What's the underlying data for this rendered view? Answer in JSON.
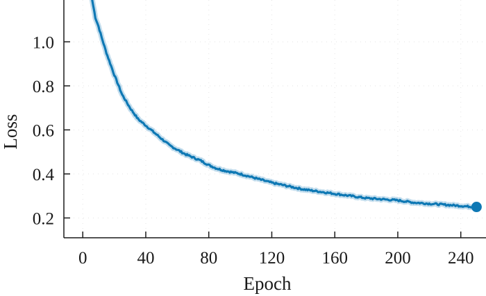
{
  "chart_data": {
    "type": "line",
    "title": "",
    "xlabel": "Epoch",
    "ylabel": "Loss",
    "xlim": [
      -12,
      256
    ],
    "ylim": [
      0.11,
      1.19
    ],
    "xticks": [
      0,
      40,
      80,
      120,
      160,
      200,
      240
    ],
    "xtick_labels": [
      "0",
      "40",
      "80",
      "120",
      "160",
      "200",
      "240"
    ],
    "yticks": [
      0.2,
      0.4,
      0.6,
      0.8,
      1.0
    ],
    "ytick_labels": [
      "0.2",
      "0.4",
      "0.6",
      "0.8",
      "1.0"
    ],
    "grid": true,
    "line_color": "#0e78b4",
    "band_color": "#a9cfe6",
    "series": [
      {
        "x": [
          6,
          8,
          10,
          12,
          15,
          18,
          20,
          25,
          30,
          35,
          40,
          45,
          50,
          55,
          60,
          65,
          70,
          75,
          80,
          85,
          90,
          100,
          110,
          120,
          130,
          140,
          150,
          160,
          170,
          180,
          190,
          200,
          210,
          220,
          230,
          240,
          245,
          250
        ],
        "values": [
          1.19,
          1.11,
          1.07,
          1.02,
          0.95,
          0.89,
          0.85,
          0.76,
          0.7,
          0.65,
          0.62,
          0.59,
          0.56,
          0.53,
          0.51,
          0.49,
          0.475,
          0.46,
          0.44,
          0.425,
          0.415,
          0.4,
          0.38,
          0.36,
          0.345,
          0.33,
          0.32,
          0.31,
          0.3,
          0.29,
          0.285,
          0.28,
          0.27,
          0.265,
          0.26,
          0.255,
          0.252,
          0.25
        ]
      }
    ]
  }
}
